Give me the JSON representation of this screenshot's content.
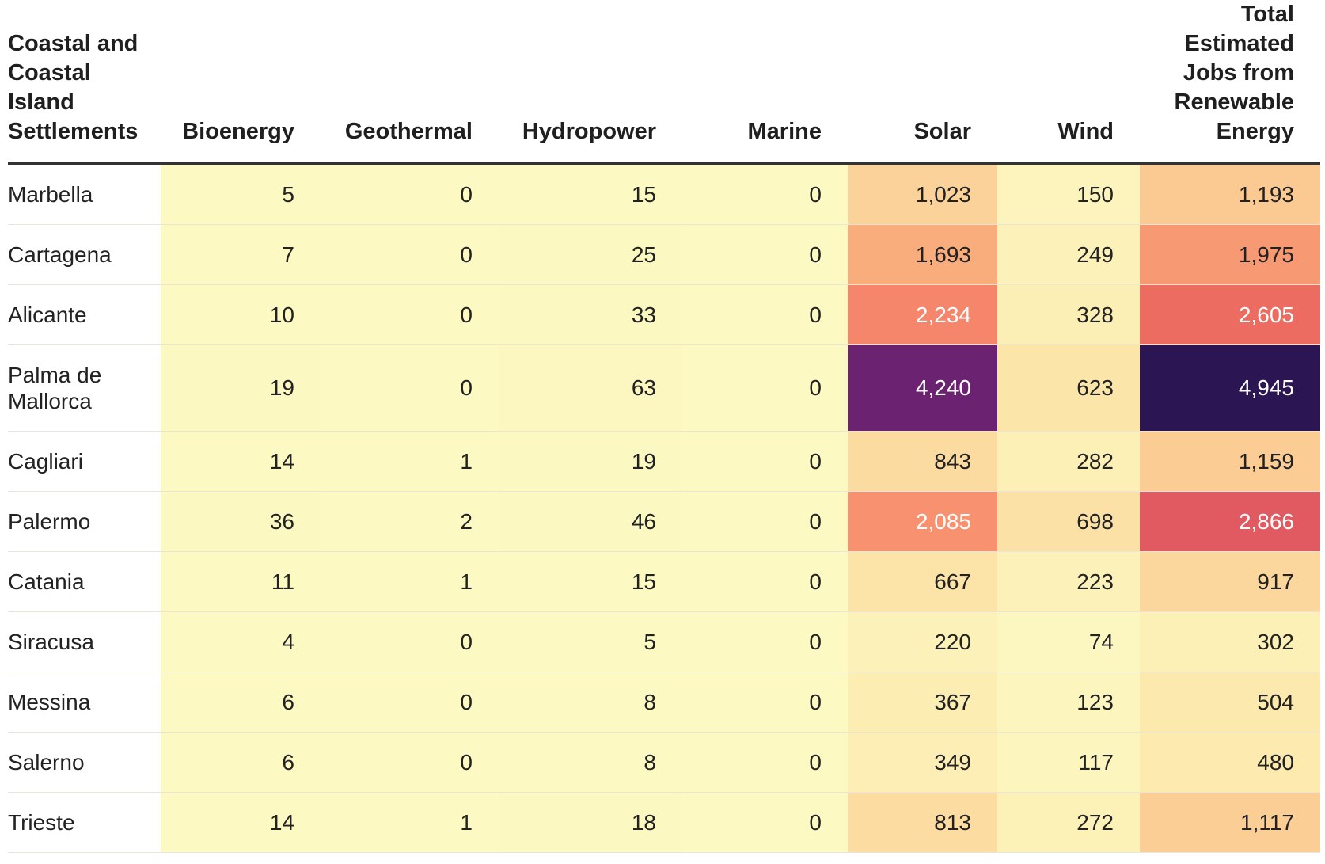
{
  "chart_data": {
    "type": "heatmap",
    "row_header": "Coastal and Coastal Island Settlements",
    "columns": [
      "Bioenergy",
      "Geothermal",
      "Hydropower",
      "Marine",
      "Solar",
      "Wind",
      "Total Estimated Jobs from Renewable Energy"
    ],
    "rows": [
      {
        "name": "Marbella",
        "values": [
          5,
          0,
          15,
          0,
          1023,
          150,
          1193
        ],
        "labels": [
          "5",
          "0",
          "15",
          "0",
          "1,023",
          "150",
          "1,193"
        ]
      },
      {
        "name": "Cartagena",
        "values": [
          7,
          0,
          25,
          0,
          1693,
          249,
          1975
        ],
        "labels": [
          "7",
          "0",
          "25",
          "0",
          "1,693",
          "249",
          "1,975"
        ]
      },
      {
        "name": "Alicante",
        "values": [
          10,
          0,
          33,
          0,
          2234,
          328,
          2605
        ],
        "labels": [
          "10",
          "0",
          "33",
          "0",
          "2,234",
          "328",
          "2,605"
        ]
      },
      {
        "name": "Palma de Mallorca",
        "values": [
          19,
          0,
          63,
          0,
          4240,
          623,
          4945
        ],
        "labels": [
          "19",
          "0",
          "63",
          "0",
          "4,240",
          "623",
          "4,945"
        ]
      },
      {
        "name": "Cagliari",
        "values": [
          14,
          1,
          19,
          0,
          843,
          282,
          1159
        ],
        "labels": [
          "14",
          "1",
          "19",
          "0",
          "843",
          "282",
          "1,159"
        ]
      },
      {
        "name": "Palermo",
        "values": [
          36,
          2,
          46,
          0,
          2085,
          698,
          2866
        ],
        "labels": [
          "36",
          "2",
          "46",
          "0",
          "2,085",
          "698",
          "2,866"
        ]
      },
      {
        "name": "Catania",
        "values": [
          11,
          1,
          15,
          0,
          667,
          223,
          917
        ],
        "labels": [
          "11",
          "1",
          "15",
          "0",
          "667",
          "223",
          "917"
        ]
      },
      {
        "name": "Siracusa",
        "values": [
          4,
          0,
          5,
          0,
          220,
          74,
          302
        ],
        "labels": [
          "4",
          "0",
          "5",
          "0",
          "220",
          "74",
          "302"
        ]
      },
      {
        "name": "Messina",
        "values": [
          6,
          0,
          8,
          0,
          367,
          123,
          504
        ],
        "labels": [
          "6",
          "0",
          "8",
          "0",
          "367",
          "123",
          "504"
        ]
      },
      {
        "name": "Salerno",
        "values": [
          6,
          0,
          8,
          0,
          349,
          117,
          480
        ],
        "labels": [
          "6",
          "0",
          "8",
          "0",
          "349",
          "117",
          "480"
        ]
      },
      {
        "name": "Trieste",
        "values": [
          14,
          1,
          18,
          0,
          813,
          272,
          1117
        ],
        "labels": [
          "14",
          "1",
          "18",
          "0",
          "813",
          "272",
          "1,117"
        ]
      }
    ],
    "color_scale": {
      "name": "magma-like sequential (light yellow to dark purple)",
      "min": 0,
      "max": 4945,
      "stops": [
        "#fcf9c3",
        "#fce8ab",
        "#fbcf97",
        "#f9b07e",
        "#f6896c",
        "#e8625f",
        "#c93f66",
        "#8d2a73",
        "#5e1f6f",
        "#2b1552"
      ],
      "light_text_color": "#ffffff",
      "dark_text_color": "#222222"
    }
  }
}
